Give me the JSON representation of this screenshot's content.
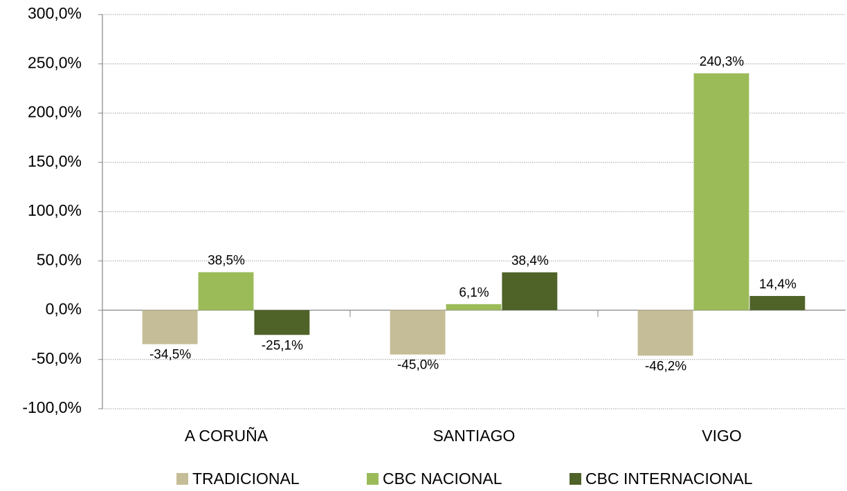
{
  "chart_data": {
    "type": "bar",
    "categories": [
      "A CORUÑA",
      "SANTIAGO",
      "VIGO"
    ],
    "series": [
      {
        "name": "TRADICIONAL",
        "color": "#c4bd97",
        "values": [
          -34.5,
          -45.0,
          -46.2
        ],
        "value_labels": [
          "-34,5%",
          "-45,0%",
          "-46,2%"
        ]
      },
      {
        "name": "CBC NACIONAL",
        "color": "#9bbb59",
        "values": [
          38.5,
          6.1,
          240.3
        ],
        "value_labels": [
          "38,5%",
          "6,1%",
          "240,3%"
        ]
      },
      {
        "name": "CBC INTERNACIONAL",
        "color": "#4f6228",
        "values": [
          -25.1,
          38.4,
          14.4
        ],
        "value_labels": [
          "-25,1%",
          "38,4%",
          "14,4%"
        ]
      }
    ],
    "ylim": [
      -100,
      300
    ],
    "yticks": [
      {
        "value": -100,
        "label": "-100,0%"
      },
      {
        "value": -50,
        "label": "-50,0%"
      },
      {
        "value": 0,
        "label": "0,0%"
      },
      {
        "value": 50,
        "label": "50,0%"
      },
      {
        "value": 100,
        "label": "100,0%"
      },
      {
        "value": 150,
        "label": "150,0%"
      },
      {
        "value": 200,
        "label": "200,0%"
      },
      {
        "value": 250,
        "label": "250,0%"
      },
      {
        "value": 300,
        "label": "300,0%"
      }
    ],
    "grid": true,
    "legend": "bottom"
  }
}
